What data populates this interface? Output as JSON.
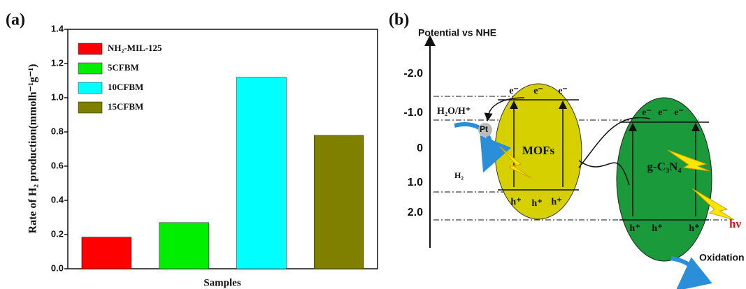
{
  "chart_data": {
    "type": "bar",
    "panel_label": "(a)",
    "x_label": "Samples",
    "y_label": "Rate of H₂ production(mmolh⁻¹g⁻¹)",
    "categories": [
      "NH₂-MIL-125",
      "5CFBM",
      "10CFBM",
      "15CFBM"
    ],
    "values": [
      0.185,
      0.27,
      1.12,
      0.78
    ],
    "colors": [
      "#ff0000",
      "#00ee00",
      "#00ffff",
      "#808000"
    ],
    "ylim": [
      0,
      1.4
    ],
    "yticks": [
      {
        "value": 0,
        "label": "0.0"
      },
      0.2,
      0.4,
      0.6,
      0.8,
      {
        "value": 1,
        "label": "1.0"
      },
      1.2,
      1.4
    ],
    "legend": "upper left"
  },
  "diagram": {
    "panel_label": "(b)",
    "axis_title": "Potential vs NHE",
    "potential_labels": [
      "-2.0",
      "-1.0",
      "0",
      "1.0",
      "2.0"
    ],
    "h2o_label": "H₂O/H⁺",
    "pt_label": "Pt",
    "h2_label": "H₂",
    "mof_label": "MOFs",
    "gcn_label": "g-C₃N₄",
    "electron": "e⁻",
    "hole": "h⁺",
    "light": "hν",
    "oxidation": "Oxidation"
  }
}
